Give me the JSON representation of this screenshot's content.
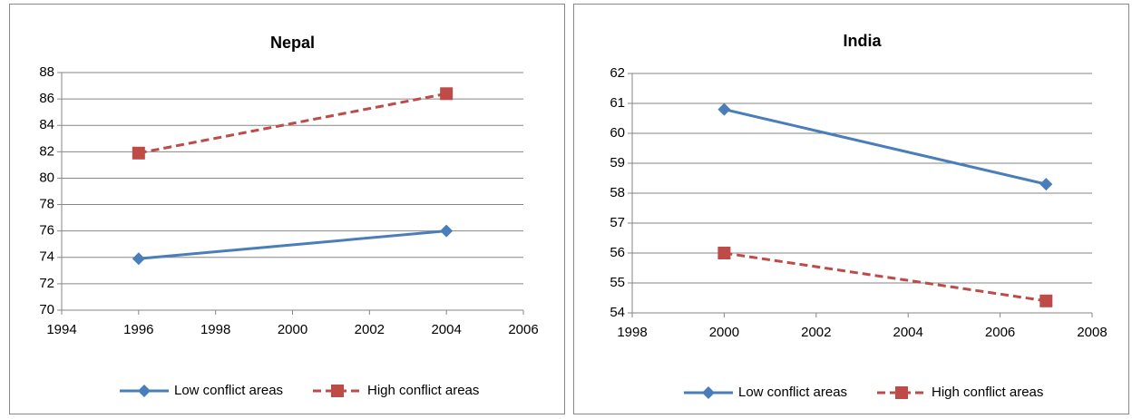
{
  "chart_data": [
    {
      "type": "line",
      "title": "Nepal",
      "x": [
        1996,
        2004
      ],
      "series": [
        {
          "name": "Low conflict areas",
          "color": "#4a7ebb",
          "marker": "diamond",
          "dash": false,
          "values": [
            73.9,
            76.0
          ]
        },
        {
          "name": "High conflict areas",
          "color": "#be4b48",
          "marker": "square",
          "dash": true,
          "values": [
            81.9,
            86.4
          ]
        }
      ],
      "xlim": [
        1994,
        2006
      ],
      "xticks": [
        1994,
        1996,
        1998,
        2000,
        2002,
        2004,
        2006
      ],
      "ylim": [
        70,
        88
      ],
      "yticks": [
        70,
        72,
        74,
        76,
        78,
        80,
        82,
        84,
        86,
        88
      ],
      "grid": true,
      "legend": "bottom"
    },
    {
      "type": "line",
      "title": "India",
      "x": [
        2000,
        2007
      ],
      "series": [
        {
          "name": "Low conflict areas",
          "color": "#4a7ebb",
          "marker": "diamond",
          "dash": false,
          "values": [
            60.8,
            58.3
          ]
        },
        {
          "name": "High conflict areas",
          "color": "#be4b48",
          "marker": "square",
          "dash": true,
          "values": [
            56.0,
            54.4
          ]
        }
      ],
      "xlim": [
        1998,
        2008
      ],
      "xticks": [
        1998,
        2000,
        2002,
        2004,
        2006,
        2008
      ],
      "ylim": [
        54,
        62
      ],
      "yticks": [
        54,
        55,
        56,
        57,
        58,
        59,
        60,
        61,
        62
      ],
      "grid": true,
      "legend": "bottom"
    }
  ]
}
